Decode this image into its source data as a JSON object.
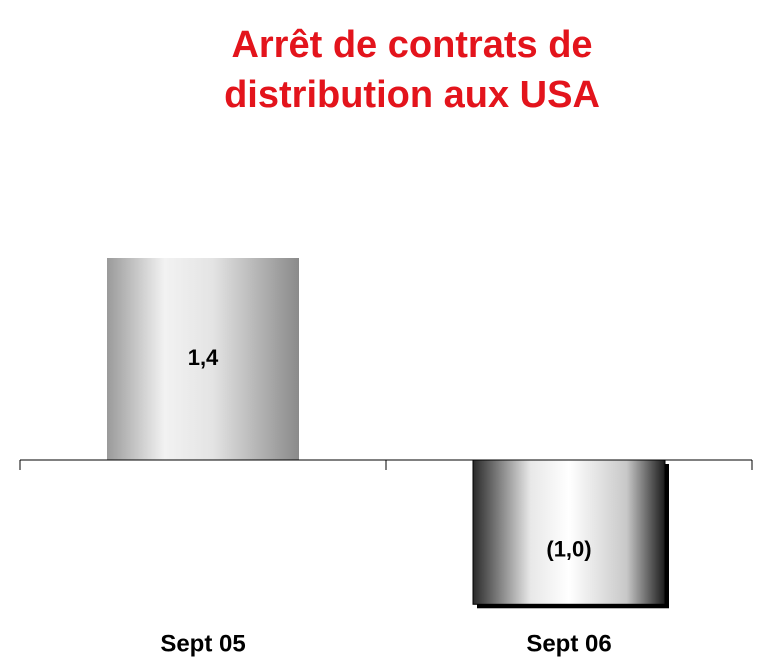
{
  "chart_data": {
    "type": "bar",
    "title": [
      "Arrêt de contrats de",
      "distribution aux USA"
    ],
    "categories": [
      "Sept 05",
      "Sept 06"
    ],
    "values": [
      1.4,
      -1.0
    ],
    "value_labels": [
      "1,4",
      "(1,0)"
    ],
    "ylim": [
      -1.4,
      1.4
    ]
  }
}
